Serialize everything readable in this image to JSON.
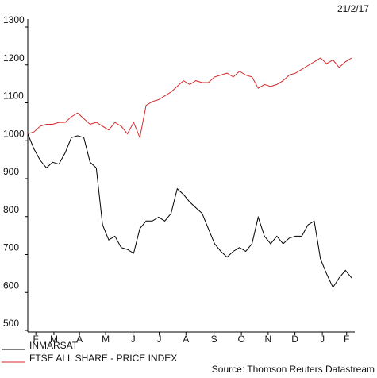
{
  "chart_data": {
    "type": "line",
    "date_label": "21/2/17",
    "source": "Source: Thomson Reuters Datastream",
    "x": [
      0,
      1,
      2,
      3,
      4,
      5,
      6,
      7,
      8,
      9,
      10,
      11,
      12,
      13,
      14,
      15,
      16,
      17,
      18,
      19,
      20,
      21,
      22,
      23,
      24,
      25,
      26,
      27,
      28,
      29,
      30,
      31,
      32,
      33,
      34,
      35,
      36,
      37,
      38,
      39,
      40,
      41,
      42,
      43,
      44,
      45,
      46,
      47,
      48,
      49,
      50,
      51,
      52
    ],
    "xlim": [
      0,
      52
    ],
    "xticks": [
      {
        "value": 1.3,
        "label": "F"
      },
      {
        "value": 4.2,
        "label": "M"
      },
      {
        "value": 8.3,
        "label": "A"
      },
      {
        "value": 12.5,
        "label": "M"
      },
      {
        "value": 16.9,
        "label": "J"
      },
      {
        "value": 21.1,
        "label": "J"
      },
      {
        "value": 25.4,
        "label": "A"
      },
      {
        "value": 29.9,
        "label": "S"
      },
      {
        "value": 34.3,
        "label": "O"
      },
      {
        "value": 38.6,
        "label": "N"
      },
      {
        "value": 42.9,
        "label": "D"
      },
      {
        "value": 47.3,
        "label": "J"
      },
      {
        "value": 51.2,
        "label": "F"
      }
    ],
    "ylim": [
      500,
      1300
    ],
    "yticks": [
      500,
      600,
      700,
      800,
      900,
      1000,
      1100,
      1200,
      1300
    ],
    "grid": false,
    "series": [
      {
        "name": "INMARSAT",
        "color": "#000000",
        "values": [
          1010,
          970,
          940,
          920,
          935,
          930,
          960,
          1000,
          1005,
          1000,
          935,
          920,
          770,
          730,
          740,
          710,
          705,
          695,
          760,
          780,
          780,
          790,
          780,
          800,
          865,
          850,
          830,
          815,
          800,
          760,
          720,
          700,
          685,
          700,
          710,
          700,
          720,
          790,
          740,
          720,
          740,
          720,
          735,
          740,
          740,
          770,
          780,
          680,
          640,
          605,
          630,
          650,
          630
        ]
      },
      {
        "name": "FTSE ALL SHARE - PRICE INDEX",
        "color": "#d42a2a",
        "values": [
          1010,
          1015,
          1030,
          1035,
          1035,
          1040,
          1040,
          1055,
          1065,
          1050,
          1035,
          1040,
          1030,
          1020,
          1040,
          1030,
          1010,
          1040,
          1000,
          1085,
          1095,
          1100,
          1110,
          1120,
          1135,
          1150,
          1140,
          1150,
          1145,
          1145,
          1160,
          1165,
          1170,
          1160,
          1175,
          1165,
          1160,
          1130,
          1140,
          1135,
          1140,
          1150,
          1165,
          1170,
          1180,
          1190,
          1200,
          1210,
          1195,
          1205,
          1185,
          1200,
          1210
        ]
      }
    ]
  }
}
